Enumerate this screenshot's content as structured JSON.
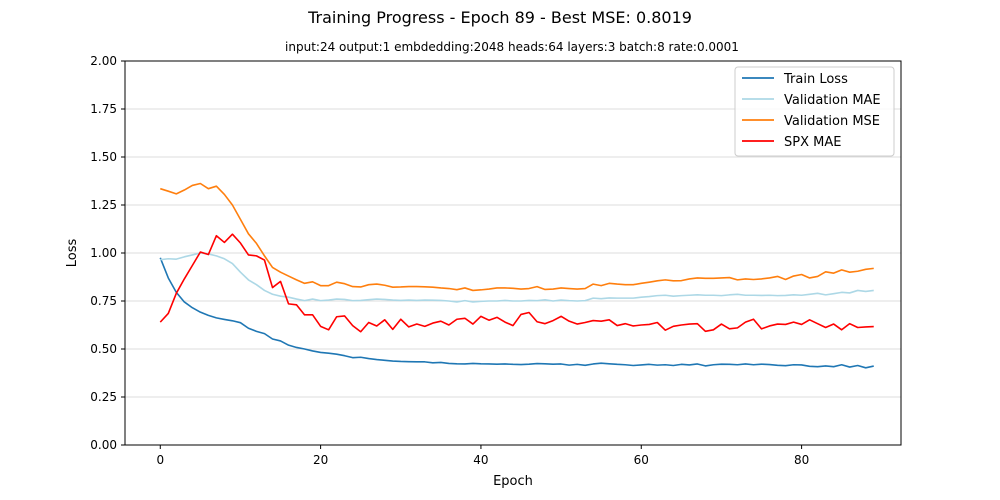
{
  "chart_data": {
    "type": "line",
    "title": "Training Progress - Epoch 89 - Best MSE: 0.8019",
    "subtitle": "input:24 output:1 embdedding:2048 heads:64 layers:3 batch:8 rate:0.0001",
    "xlabel": "Epoch",
    "ylabel": "Loss",
    "xlim": [
      -4.4,
      92.4
    ],
    "ylim": [
      0,
      2
    ],
    "xticks": [
      0,
      20,
      40,
      60,
      80
    ],
    "yticks": [
      0.0,
      0.25,
      0.5,
      0.75,
      1.0,
      1.25,
      1.5,
      1.75,
      2.0
    ],
    "xtick_labels": [
      "0",
      "20",
      "40",
      "60",
      "80"
    ],
    "ytick_labels": [
      "0.00",
      "0.25",
      "0.50",
      "0.75",
      "1.00",
      "1.25",
      "1.50",
      "1.75",
      "2.00"
    ],
    "grid": "horizontal",
    "legend_position": "top-right",
    "series": [
      {
        "name": "Train Loss",
        "color": "#1f77b4",
        "values": [
          0.975,
          0.87,
          0.795,
          0.745,
          0.715,
          0.692,
          0.675,
          0.662,
          0.654,
          0.647,
          0.637,
          0.608,
          0.592,
          0.58,
          0.552,
          0.542,
          0.52,
          0.508,
          0.5,
          0.49,
          0.482,
          0.478,
          0.473,
          0.465,
          0.455,
          0.457,
          0.45,
          0.445,
          0.441,
          0.437,
          0.435,
          0.434,
          0.433,
          0.433,
          0.428,
          0.43,
          0.425,
          0.423,
          0.422,
          0.425,
          0.423,
          0.422,
          0.421,
          0.422,
          0.42,
          0.419,
          0.421,
          0.424,
          0.423,
          0.421,
          0.422,
          0.416,
          0.42,
          0.415,
          0.422,
          0.426,
          0.423,
          0.42,
          0.418,
          0.414,
          0.417,
          0.42,
          0.416,
          0.418,
          0.414,
          0.42,
          0.417,
          0.422,
          0.412,
          0.418,
          0.421,
          0.42,
          0.418,
          0.422,
          0.418,
          0.421,
          0.419,
          0.415,
          0.413,
          0.418,
          0.417,
          0.41,
          0.408,
          0.412,
          0.408,
          0.418,
          0.406,
          0.414,
          0.402,
          0.411
        ]
      },
      {
        "name": "Validation MAE",
        "color": "#add8e6",
        "values": [
          0.965,
          0.97,
          0.968,
          0.98,
          0.99,
          1.0,
          0.995,
          0.985,
          0.97,
          0.945,
          0.9,
          0.86,
          0.835,
          0.805,
          0.785,
          0.775,
          0.77,
          0.76,
          0.752,
          0.76,
          0.752,
          0.755,
          0.76,
          0.758,
          0.752,
          0.753,
          0.757,
          0.76,
          0.758,
          0.755,
          0.753,
          0.755,
          0.753,
          0.755,
          0.754,
          0.753,
          0.75,
          0.745,
          0.752,
          0.745,
          0.748,
          0.75,
          0.75,
          0.753,
          0.75,
          0.75,
          0.753,
          0.752,
          0.756,
          0.75,
          0.755,
          0.752,
          0.75,
          0.752,
          0.765,
          0.762,
          0.766,
          0.765,
          0.765,
          0.765,
          0.77,
          0.773,
          0.778,
          0.78,
          0.775,
          0.778,
          0.78,
          0.782,
          0.78,
          0.78,
          0.778,
          0.782,
          0.785,
          0.78,
          0.78,
          0.779,
          0.78,
          0.778,
          0.779,
          0.782,
          0.78,
          0.785,
          0.79,
          0.782,
          0.788,
          0.795,
          0.792,
          0.805,
          0.8,
          0.805
        ]
      },
      {
        "name": "Validation MSE",
        "color": "#ff7f0e",
        "values": [
          1.335,
          1.322,
          1.308,
          1.328,
          1.352,
          1.362,
          1.335,
          1.348,
          1.305,
          1.25,
          1.175,
          1.1,
          1.05,
          0.985,
          0.925,
          0.9,
          0.88,
          0.86,
          0.842,
          0.85,
          0.83,
          0.83,
          0.848,
          0.84,
          0.825,
          0.823,
          0.835,
          0.838,
          0.832,
          0.822,
          0.823,
          0.825,
          0.825,
          0.824,
          0.822,
          0.818,
          0.815,
          0.809,
          0.818,
          0.805,
          0.808,
          0.812,
          0.818,
          0.818,
          0.816,
          0.812,
          0.815,
          0.825,
          0.81,
          0.812,
          0.818,
          0.815,
          0.812,
          0.815,
          0.838,
          0.83,
          0.842,
          0.838,
          0.835,
          0.835,
          0.842,
          0.848,
          0.855,
          0.86,
          0.855,
          0.856,
          0.865,
          0.87,
          0.868,
          0.868,
          0.87,
          0.872,
          0.86,
          0.865,
          0.862,
          0.865,
          0.87,
          0.878,
          0.862,
          0.88,
          0.888,
          0.87,
          0.878,
          0.902,
          0.895,
          0.912,
          0.9,
          0.905,
          0.915,
          0.92
        ]
      },
      {
        "name": "SPX MAE",
        "color": "#ff0000",
        "values": [
          0.64,
          0.685,
          0.79,
          0.865,
          0.935,
          1.005,
          0.992,
          1.09,
          1.055,
          1.098,
          1.052,
          0.99,
          0.985,
          0.963,
          0.82,
          0.852,
          0.735,
          0.73,
          0.678,
          0.678,
          0.618,
          0.6,
          0.668,
          0.672,
          0.622,
          0.59,
          0.638,
          0.62,
          0.652,
          0.602,
          0.655,
          0.615,
          0.63,
          0.618,
          0.635,
          0.645,
          0.625,
          0.655,
          0.66,
          0.63,
          0.67,
          0.65,
          0.665,
          0.64,
          0.622,
          0.68,
          0.69,
          0.642,
          0.632,
          0.648,
          0.67,
          0.645,
          0.63,
          0.638,
          0.648,
          0.645,
          0.652,
          0.622,
          0.632,
          0.62,
          0.625,
          0.628,
          0.638,
          0.598,
          0.618,
          0.625,
          0.63,
          0.632,
          0.592,
          0.6,
          0.63,
          0.605,
          0.61,
          0.64,
          0.655,
          0.605,
          0.62,
          0.63,
          0.628,
          0.64,
          0.628,
          0.652,
          0.632,
          0.612,
          0.63,
          0.6,
          0.632,
          0.612,
          0.615,
          0.617
        ]
      }
    ]
  }
}
